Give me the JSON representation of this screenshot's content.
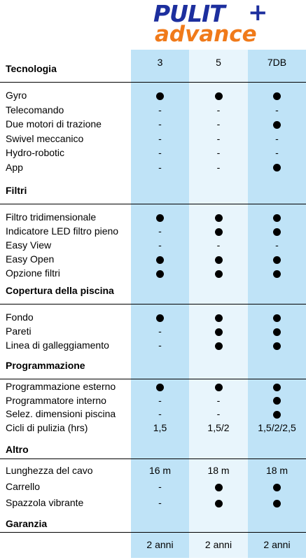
{
  "logo": {
    "line1": "PULIT",
    "plus": "+",
    "line2": "advance"
  },
  "colors": {
    "col_dark": "#bfe3f7",
    "col_light": "#e8f5fc",
    "logo_blue": "#1d2f9e",
    "logo_orange": "#f07a1a"
  },
  "models": [
    "3",
    "5",
    "7DB"
  ],
  "sections": [
    {
      "title": "Tecnologia",
      "rows": [
        {
          "label": "Gyro",
          "values": [
            "dot",
            "dot",
            "dot"
          ]
        },
        {
          "label": "Telecomando",
          "values": [
            "-",
            "-",
            "-"
          ]
        },
        {
          "label": "Due motori di trazione",
          "values": [
            "-",
            "-",
            "dot"
          ]
        },
        {
          "label": "Swivel meccanico",
          "values": [
            "-",
            "-",
            "-"
          ]
        },
        {
          "label": "Hydro-robotic",
          "values": [
            "-",
            "-",
            "-"
          ]
        },
        {
          "label": "App",
          "values": [
            "-",
            "-",
            "dot"
          ]
        }
      ]
    },
    {
      "title": "Filtri",
      "rows": [
        {
          "label": "Filtro tridimensionale",
          "values": [
            "dot",
            "dot",
            "dot"
          ]
        },
        {
          "label": "Indicatore LED filtro pieno",
          "values": [
            "-",
            "dot",
            "dot"
          ]
        },
        {
          "label": "Easy View",
          "values": [
            "-",
            "-",
            "-"
          ]
        },
        {
          "label": "Easy Open",
          "values": [
            "dot",
            "dot",
            "dot"
          ]
        },
        {
          "label": "Opzione filtri",
          "values": [
            "dot",
            "dot",
            "dot"
          ]
        }
      ]
    },
    {
      "title": "Copertura della piscina",
      "rows": [
        {
          "label": "Fondo",
          "values": [
            "dot",
            "dot",
            "dot"
          ]
        },
        {
          "label": "Pareti",
          "values": [
            "-",
            "dot",
            "dot"
          ]
        },
        {
          "label": "Linea di galleggiamento",
          "values": [
            "-",
            "dot",
            "dot"
          ]
        }
      ]
    },
    {
      "title": "Programmazione",
      "rows": [
        {
          "label": "Programmazione esterno",
          "values": [
            "dot",
            "dot",
            "dot"
          ]
        },
        {
          "label": "Programmatore interno",
          "values": [
            "-",
            "-",
            "dot"
          ]
        },
        {
          "label": "Selez. dimensioni piscina",
          "values": [
            "-",
            "-",
            "dot"
          ]
        },
        {
          "label": "Cicli di pulizia (hrs)",
          "values": [
            "1,5",
            "1,5/2",
            "1,5/2/2,5"
          ]
        }
      ]
    },
    {
      "title": "Altro",
      "rows": [
        {
          "label": "Lunghezza del cavo",
          "values": [
            "16 m",
            "18 m",
            "18 m"
          ]
        },
        {
          "label": "Carrello",
          "values": [
            "-",
            "dot",
            "dot"
          ]
        },
        {
          "label": "Spazzola vibrante",
          "values": [
            "-",
            "dot",
            "dot"
          ]
        }
      ]
    },
    {
      "title": "Garanzia",
      "rows": [
        {
          "label": "",
          "values": [
            "2 anni",
            "2 anni",
            "2 anni"
          ]
        }
      ]
    }
  ]
}
